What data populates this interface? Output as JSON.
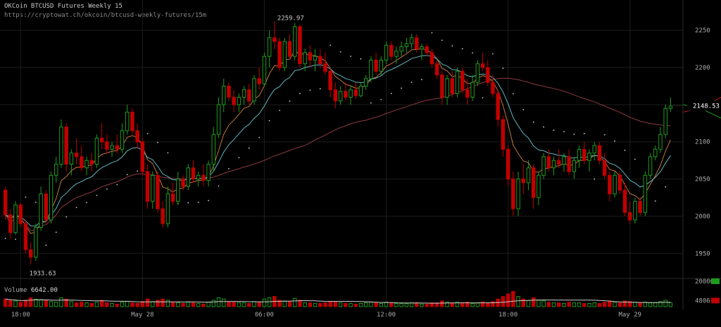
{
  "header": {
    "title": "OKCoin BTCUSD Futures Weekly 15",
    "url": "https://cryptowat.ch/okcoin/btcusd-weekly-futures/15m"
  },
  "colors": {
    "up": "#1e9c1e",
    "down": "#c00000",
    "ema_fast": "#c2763e",
    "ema_slow": "#5fb8c0",
    "ma_long": "#8a3a40",
    "ma_tail": "#c01818",
    "grid": "#1c1c1c",
    "dots": "#cccccc"
  },
  "chart_data": {
    "type": "candlestick",
    "ylim": [
      1920,
      2270
    ],
    "y_ticks": [
      "1950",
      "2000",
      "2050",
      "2100",
      "2150",
      "2200",
      "2250"
    ],
    "x_ticks": [
      "18:00",
      "May 28",
      "06:00",
      "12:00",
      "18:00",
      "May 29"
    ],
    "annotations": {
      "high_label": "2259.97",
      "low_label": "1933.63",
      "last_price": "2148.53"
    },
    "volume": {
      "label": "Volume",
      "value": "6642.00",
      "ticks": [
        "20000",
        "4806"
      ],
      "max": 20000,
      "average": 4806
    },
    "candles": [
      [
        2035,
        2040,
        1995,
        2002,
        6000
      ],
      [
        2002,
        2010,
        1970,
        1978,
        5000
      ],
      [
        1978,
        2020,
        1975,
        2015,
        4500
      ],
      [
        2015,
        2018,
        1985,
        1990,
        3500
      ],
      [
        1990,
        1995,
        1950,
        1955,
        5000
      ],
      [
        1955,
        1965,
        1935,
        1945,
        7000
      ],
      [
        1945,
        1990,
        1940,
        1985,
        6000
      ],
      [
        1985,
        2040,
        1980,
        2030,
        5500
      ],
      [
        2030,
        2035,
        1990,
        1995,
        5000
      ],
      [
        1995,
        2060,
        1990,
        2055,
        4000
      ],
      [
        2055,
        2080,
        2045,
        2070,
        3500
      ],
      [
        2070,
        2130,
        2065,
        2120,
        7000
      ],
      [
        2120,
        2125,
        2060,
        2070,
        6000
      ],
      [
        2070,
        2090,
        2055,
        2085,
        4000
      ],
      [
        2085,
        2105,
        2070,
        2080,
        3000
      ],
      [
        2080,
        2095,
        2060,
        2065,
        3500
      ],
      [
        2065,
        2080,
        2055,
        2075,
        3000
      ],
      [
        2075,
        2085,
        2060,
        2070,
        2500
      ],
      [
        2070,
        2110,
        2065,
        2105,
        3500
      ],
      [
        2105,
        2125,
        2090,
        2100,
        5000
      ],
      [
        2100,
        2110,
        2085,
        2090,
        3000
      ],
      [
        2090,
        2100,
        2080,
        2095,
        2500
      ],
      [
        2095,
        2110,
        2085,
        2090,
        2000
      ],
      [
        2090,
        2125,
        2085,
        2115,
        3500
      ],
      [
        2115,
        2150,
        2110,
        2140,
        4000
      ],
      [
        2140,
        2145,
        2110,
        2115,
        3000
      ],
      [
        2115,
        2125,
        2090,
        2100,
        2500
      ],
      [
        2100,
        2105,
        2055,
        2060,
        4000
      ],
      [
        2060,
        2070,
        2010,
        2020,
        6000
      ],
      [
        2020,
        2060,
        2010,
        2055,
        4000
      ],
      [
        2055,
        2060,
        2005,
        2010,
        5000
      ],
      [
        2010,
        2020,
        1985,
        1990,
        6000
      ],
      [
        1990,
        2040,
        1985,
        2030,
        5000
      ],
      [
        2030,
        2045,
        2015,
        2020,
        3500
      ],
      [
        2020,
        2060,
        2015,
        2050,
        3000
      ],
      [
        2050,
        2055,
        2035,
        2040,
        2500
      ],
      [
        2040,
        2070,
        2035,
        2065,
        3500
      ],
      [
        2065,
        2075,
        2045,
        2050,
        3000
      ],
      [
        2050,
        2060,
        2040,
        2055,
        2500
      ],
      [
        2055,
        2070,
        2040,
        2048,
        2000
      ],
      [
        2048,
        2075,
        2040,
        2070,
        3500
      ],
      [
        2070,
        2120,
        2060,
        2110,
        5000
      ],
      [
        2110,
        2160,
        2105,
        2150,
        7000
      ],
      [
        2150,
        2185,
        2140,
        2175,
        6000
      ],
      [
        2175,
        2180,
        2155,
        2160,
        4000
      ],
      [
        2160,
        2170,
        2140,
        2150,
        3500
      ],
      [
        2150,
        2165,
        2140,
        2160,
        3000
      ],
      [
        2160,
        2175,
        2150,
        2170,
        3000
      ],
      [
        2170,
        2178,
        2150,
        2155,
        2500
      ],
      [
        2155,
        2190,
        2150,
        2185,
        4000
      ],
      [
        2185,
        2200,
        2170,
        2178,
        3500
      ],
      [
        2178,
        2220,
        2175,
        2215,
        6000
      ],
      [
        2215,
        2250,
        2200,
        2240,
        7000
      ],
      [
        2240,
        2262,
        2225,
        2235,
        8000
      ],
      [
        2235,
        2240,
        2195,
        2200,
        5000
      ],
      [
        2200,
        2240,
        2195,
        2235,
        4500
      ],
      [
        2235,
        2245,
        2210,
        2215,
        4000
      ],
      [
        2215,
        2260,
        2210,
        2255,
        6500
      ],
      [
        2255,
        2258,
        2200,
        2205,
        5000
      ],
      [
        2205,
        2225,
        2195,
        2220,
        3000
      ],
      [
        2220,
        2230,
        2200,
        2210,
        3000
      ],
      [
        2210,
        2225,
        2195,
        2215,
        2500
      ],
      [
        2215,
        2225,
        2200,
        2205,
        2500
      ],
      [
        2205,
        2220,
        2190,
        2195,
        3000
      ],
      [
        2195,
        2200,
        2160,
        2170,
        4000
      ],
      [
        2170,
        2180,
        2145,
        2155,
        3500
      ],
      [
        2155,
        2175,
        2150,
        2168,
        3000
      ],
      [
        2168,
        2180,
        2155,
        2160,
        2500
      ],
      [
        2160,
        2175,
        2150,
        2170,
        2500
      ],
      [
        2170,
        2180,
        2158,
        2162,
        2000
      ],
      [
        2162,
        2180,
        2160,
        2175,
        2500
      ],
      [
        2175,
        2190,
        2170,
        2185,
        3000
      ],
      [
        2185,
        2215,
        2180,
        2210,
        3500
      ],
      [
        2210,
        2220,
        2190,
        2195,
        3000
      ],
      [
        2195,
        2215,
        2190,
        2210,
        2500
      ],
      [
        2210,
        2235,
        2205,
        2230,
        3500
      ],
      [
        2230,
        2235,
        2210,
        2215,
        3000
      ],
      [
        2215,
        2228,
        2205,
        2222,
        2500
      ],
      [
        2222,
        2235,
        2215,
        2228,
        2500
      ],
      [
        2228,
        2240,
        2220,
        2232,
        2500
      ],
      [
        2232,
        2245,
        2225,
        2240,
        3000
      ],
      [
        2240,
        2245,
        2220,
        2225,
        3000
      ],
      [
        2225,
        2232,
        2210,
        2228,
        2000
      ],
      [
        2228,
        2232,
        2215,
        2220,
        2000
      ],
      [
        2220,
        2225,
        2200,
        2205,
        3000
      ],
      [
        2205,
        2210,
        2185,
        2190,
        3000
      ],
      [
        2190,
        2195,
        2150,
        2160,
        4500
      ],
      [
        2160,
        2190,
        2150,
        2185,
        3500
      ],
      [
        2185,
        2195,
        2160,
        2165,
        3000
      ],
      [
        2165,
        2200,
        2160,
        2195,
        3500
      ],
      [
        2195,
        2200,
        2165,
        2170,
        3000
      ],
      [
        2170,
        2185,
        2150,
        2160,
        3500
      ],
      [
        2160,
        2190,
        2155,
        2180,
        2500
      ],
      [
        2180,
        2210,
        2175,
        2205,
        3000
      ],
      [
        2205,
        2220,
        2195,
        2200,
        3500
      ],
      [
        2200,
        2210,
        2175,
        2180,
        3000
      ],
      [
        2180,
        2190,
        2160,
        2165,
        4000
      ],
      [
        2165,
        2170,
        2120,
        2130,
        6000
      ],
      [
        2130,
        2135,
        2080,
        2090,
        8000
      ],
      [
        2090,
        2095,
        2040,
        2050,
        10000
      ],
      [
        2050,
        2060,
        2000,
        2010,
        12000
      ],
      [
        2010,
        2060,
        2000,
        2050,
        8000
      ],
      [
        2050,
        2070,
        2030,
        2045,
        6000
      ],
      [
        2045,
        2075,
        2035,
        2065,
        5000
      ],
      [
        2065,
        2070,
        2010,
        2025,
        7000
      ],
      [
        2025,
        2060,
        2015,
        2055,
        5000
      ],
      [
        2055,
        2085,
        2050,
        2080,
        4500
      ],
      [
        2080,
        2090,
        2060,
        2065,
        3500
      ],
      [
        2065,
        2080,
        2055,
        2075,
        3000
      ],
      [
        2075,
        2090,
        2065,
        2070,
        3000
      ],
      [
        2070,
        2085,
        2060,
        2080,
        2500
      ],
      [
        2080,
        2090,
        2055,
        2060,
        3500
      ],
      [
        2060,
        2080,
        2050,
        2075,
        3000
      ],
      [
        2075,
        2095,
        2065,
        2090,
        3000
      ],
      [
        2090,
        2100,
        2070,
        2075,
        2500
      ],
      [
        2075,
        2090,
        2060,
        2085,
        2500
      ],
      [
        2085,
        2100,
        2075,
        2095,
        3000
      ],
      [
        2095,
        2100,
        2070,
        2075,
        2500
      ],
      [
        2075,
        2085,
        2050,
        2055,
        3500
      ],
      [
        2055,
        2060,
        2020,
        2030,
        4500
      ],
      [
        2030,
        2060,
        2025,
        2055,
        3500
      ],
      [
        2055,
        2060,
        2030,
        2035,
        3000
      ],
      [
        2035,
        2045,
        2000,
        2005,
        4500
      ],
      [
        2005,
        2020,
        1990,
        1995,
        4000
      ],
      [
        1995,
        2025,
        1990,
        2020,
        3500
      ],
      [
        2020,
        2025,
        2000,
        2005,
        3000
      ],
      [
        2005,
        2060,
        2000,
        2055,
        3500
      ],
      [
        2055,
        2085,
        2050,
        2080,
        3000
      ],
      [
        2080,
        2095,
        2075,
        2090,
        3000
      ],
      [
        2090,
        2120,
        2085,
        2110,
        4000
      ],
      [
        2110,
        2150,
        2105,
        2145,
        5000
      ],
      [
        2145,
        2160,
        2140,
        2148,
        3000
      ]
    ]
  }
}
